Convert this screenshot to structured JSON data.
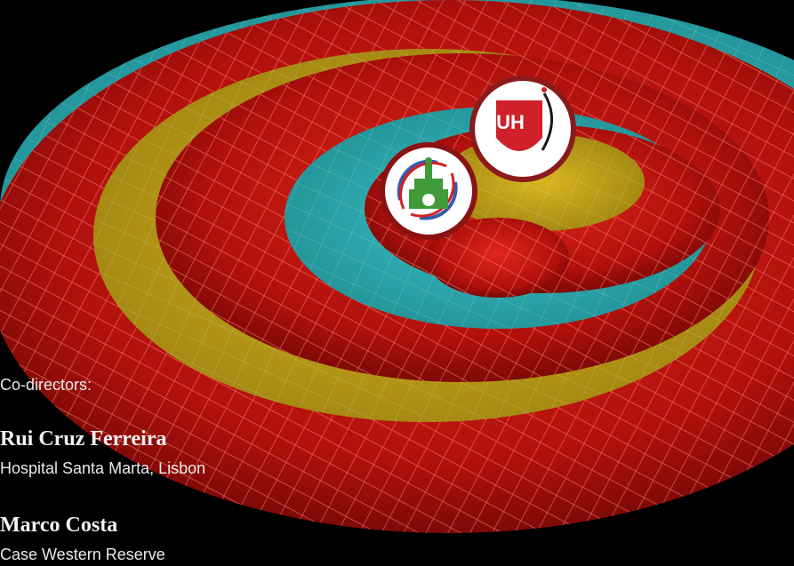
{
  "slide": {
    "codirectors_label": "Co-directors:",
    "directors": [
      {
        "name": "Rui Cruz Ferreira",
        "affiliation": "Hospital Santa Marta, Lisbon"
      },
      {
        "name": "Marco Costa",
        "affiliation": "Case Western Reserve"
      }
    ]
  },
  "logos": {
    "uh": {
      "text": "UH",
      "colors": {
        "primary": "#d0202a",
        "ring": "#8a1b1b"
      }
    },
    "hospital_santa_marta": {
      "colors": {
        "green": "#3f9a3a",
        "blue": "#3a5aa8",
        "red": "#d0202a"
      }
    }
  },
  "colors": {
    "background": "#000000",
    "band_red": "#c8140f",
    "band_yellow": "#c7a717",
    "band_cyan": "#2bb3b8",
    "mesh": "#ff6a5c"
  }
}
